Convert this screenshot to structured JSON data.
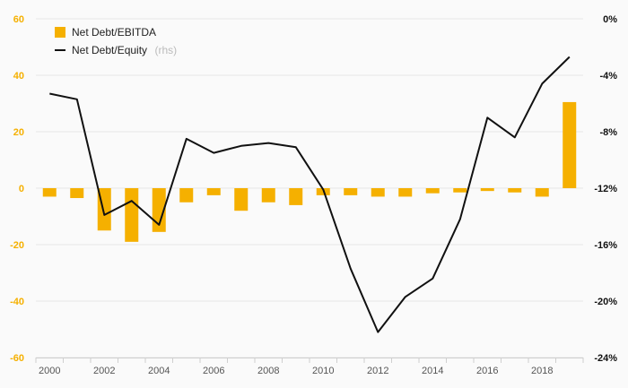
{
  "chart_data": {
    "type": "bar+line",
    "x": [
      2000,
      2001,
      2002,
      2003,
      2004,
      2005,
      2006,
      2007,
      2008,
      2009,
      2010,
      2011,
      2012,
      2013,
      2014,
      2015,
      2016,
      2017,
      2018,
      2019
    ],
    "x_tick_labels": [
      "2000",
      "2002",
      "2004",
      "2006",
      "2008",
      "2010",
      "2012",
      "2014",
      "2016",
      "2018"
    ],
    "left_axis": {
      "ylim": [
        -60,
        60
      ],
      "ticks": [
        "-60",
        "-40",
        "-20",
        "0",
        "20",
        "40",
        "60"
      ],
      "color": "#f5b000"
    },
    "right_axis": {
      "ylim": [
        -24,
        0
      ],
      "ticks": [
        "-24%",
        "-20%",
        "-16%",
        "-12%",
        "-8%",
        "-4%",
        "0%"
      ],
      "color": "#111111"
    },
    "grid": "horizontal",
    "legend_position": "top-left",
    "series": [
      {
        "name": "Net Debt/EBITDA",
        "type": "bar",
        "axis": "left",
        "color": "#f5b000",
        "values": [
          -3,
          -3.5,
          -15,
          -19,
          -15.5,
          -5,
          -2.5,
          -8,
          -5,
          -6,
          -2.5,
          -2.5,
          -3,
          -3,
          -1.8,
          -1.5,
          -1,
          -1.5,
          -3,
          30.5
        ]
      },
      {
        "name": "Net Debt/Equity",
        "name_suffix": "(rhs)",
        "type": "line",
        "axis": "right",
        "color": "#111111",
        "values": [
          -5.3,
          -5.7,
          -13.9,
          -12.9,
          -14.6,
          -8.5,
          -9.5,
          -9.0,
          -8.8,
          -9.1,
          -12.1,
          -17.7,
          -22.2,
          -19.7,
          -18.4,
          -14.2,
          -7.0,
          -8.4,
          -4.6,
          -2.7
        ]
      }
    ]
  }
}
